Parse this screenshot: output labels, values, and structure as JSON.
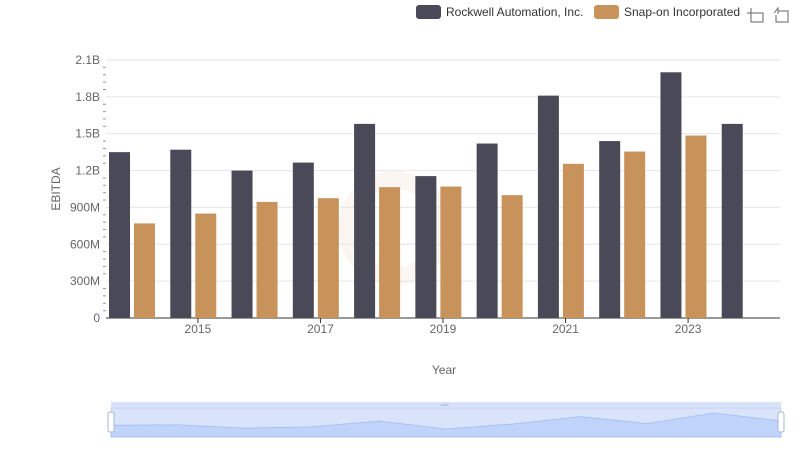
{
  "chart_data": {
    "type": "bar",
    "x": [
      "2014",
      "2015",
      "2016",
      "2017",
      "2018",
      "2019",
      "2020",
      "2021",
      "2022",
      "2023",
      "2024"
    ],
    "x_tick_labels": [
      "2015",
      "2017",
      "2019",
      "2021",
      "2023"
    ],
    "series": [
      {
        "name": "Rockwell Automation, Inc.",
        "color": "#4a4957",
        "values": [
          1350000000,
          1370000000,
          1200000000,
          1265000000,
          1580000000,
          1155000000,
          1420000000,
          1810000000,
          1440000000,
          2000000000,
          1580000000
        ]
      },
      {
        "name": "Snap-on Incorporated",
        "color": "#c8925b",
        "values": [
          770000000,
          850000000,
          945000000,
          975000000,
          1065000000,
          1070000000,
          1000000000,
          1255000000,
          1355000000,
          1485000000,
          null
        ]
      }
    ],
    "xlabel": "Year",
    "ylabel": "EBITDA",
    "ylim": [
      0,
      2100000000
    ],
    "y_ticks": [
      0,
      300000000,
      600000000,
      900000000,
      1200000000,
      1500000000,
      1800000000,
      2100000000
    ],
    "y_tick_labels": [
      "0",
      "300M",
      "600M",
      "900M",
      "1.2B",
      "1.5B",
      "1.8B",
      "2.1B"
    ],
    "grid": true,
    "legend_position": "top-right",
    "toolbox_icons": [
      "zoom-icon",
      "restore-icon"
    ],
    "data_zoom": {
      "start": 0,
      "end": 100
    }
  }
}
